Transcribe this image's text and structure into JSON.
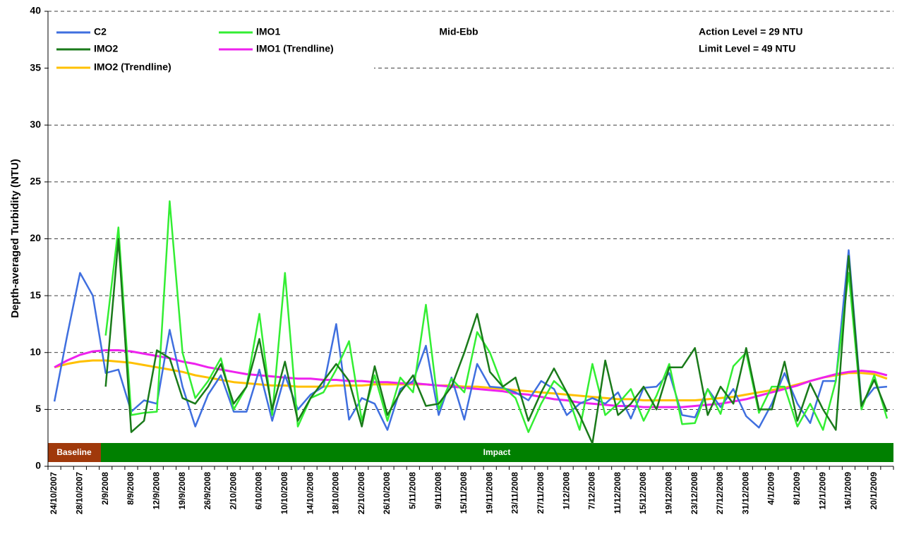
{
  "chart_data": {
    "type": "line",
    "y_label": "Depth-averaged Turbidity (NTU)",
    "annotations": [
      "Mid-Ebb",
      "Action Level = 29 NTU",
      "Limit Level = 49 NTU"
    ],
    "phases": [
      "Baseline",
      "Impact"
    ],
    "ylim": [
      0,
      40
    ],
    "yticks": [
      0,
      5,
      10,
      15,
      20,
      25,
      30,
      35,
      40
    ],
    "grid": true,
    "categories": [
      "24/10/2007",
      null,
      "28/10/2007",
      null,
      "2/9/2008",
      null,
      "8/9/2008",
      null,
      "12/9/2008",
      null,
      "19/9/2008",
      null,
      "26/9/2008",
      null,
      "2/10/2008",
      null,
      "6/10/2008",
      null,
      "10/10/2008",
      null,
      "14/10/2008",
      null,
      "18/10/2008",
      null,
      "22/10/2008",
      null,
      "26/10/2008",
      null,
      "5/11/2008",
      null,
      "9/11/2008",
      null,
      "15/11/2008",
      null,
      "19/11/2008",
      null,
      "23/11/2008",
      null,
      "27/11/2008",
      null,
      "1/12/2008",
      null,
      "7/12/2008",
      null,
      "11/12/2008",
      null,
      "15/12/2008",
      null,
      "19/12/2008",
      null,
      "23/12/2008",
      null,
      "27/12/2008",
      null,
      "31/12/2008",
      null,
      "4/1/2009",
      null,
      "8/1/2009",
      null,
      "12/1/2009",
      null,
      "16/1/2009",
      null,
      "20/1/2009",
      null
    ],
    "series": [
      {
        "name": "C2",
        "color": "#3f6fdf",
        "values": [
          5.7,
          11.5,
          17,
          15,
          8.2,
          8.5,
          4.8,
          5.8,
          5.5,
          12,
          7,
          3.5,
          6.3,
          8,
          4.8,
          4.8,
          8.5,
          4,
          8,
          5,
          6.3,
          7,
          12.5,
          4.1,
          6,
          5.5,
          3.2,
          6.8,
          7.5,
          10.6,
          4.5,
          7.8,
          4.1,
          9,
          7,
          6.9,
          6.5,
          5.8,
          7.5,
          6.8,
          4.5,
          5.5,
          6,
          5.5,
          6.5,
          4.2,
          6.9,
          7,
          8.2,
          4.5,
          4.3,
          6.8,
          5.2,
          6.8,
          4.4,
          3.4,
          5.5,
          8.2,
          5.5,
          3.8,
          7.5,
          7.5,
          19,
          5.5,
          6.9,
          7
        ]
      },
      {
        "name": "IMO1",
        "color": "#33ee33",
        "values": [
          null,
          null,
          null,
          null,
          11.5,
          21,
          4.5,
          4.7,
          4.8,
          23.3,
          10,
          6,
          7.5,
          9.5,
          5,
          7,
          13.4,
          4.5,
          17,
          3.5,
          6,
          6.5,
          8.5,
          11,
          4,
          8,
          4,
          7.8,
          6.5,
          14.2,
          5,
          7.7,
          6.5,
          11.8,
          10,
          7,
          6,
          3,
          5.5,
          7.5,
          6.5,
          3.2,
          9,
          4.5,
          5.5,
          6.8,
          4,
          6.2,
          9,
          3.7,
          3.8,
          6.8,
          4.6,
          8.8,
          10,
          4.7,
          7,
          7,
          3.5,
          5.5,
          3.2,
          7.5,
          17,
          5,
          8,
          4.2
        ]
      },
      {
        "name": "IMO2",
        "color": "#1a7a1a",
        "values": [
          null,
          null,
          null,
          null,
          7,
          20,
          3,
          4,
          10.2,
          9.5,
          6,
          5.5,
          7,
          9,
          5.5,
          7,
          11.2,
          5,
          9.2,
          4,
          6,
          7.5,
          9,
          7.5,
          3.5,
          8.8,
          4.5,
          6.5,
          8,
          5.3,
          5.5,
          7,
          10,
          13.4,
          8.3,
          7,
          7.8,
          4,
          6.5,
          8.6,
          6.5,
          4.5,
          2,
          9.3,
          4.5,
          5.5,
          7,
          5,
          8.7,
          8.7,
          10.4,
          4.5,
          7,
          5.5,
          10.4,
          5,
          5,
          9.2,
          4,
          7.3,
          5,
          3.2,
          18.5,
          5.3,
          7.6,
          4.8
        ]
      },
      {
        "name": "IMO1 (Trendline)",
        "color": "#ee22ee",
        "values": [
          8.7,
          9.3,
          9.8,
          10.1,
          10.2,
          10.2,
          10.1,
          9.9,
          9.7,
          9.5,
          9.2,
          9.0,
          8.7,
          8.5,
          8.3,
          8.1,
          8.0,
          7.9,
          7.8,
          7.7,
          7.7,
          7.6,
          7.6,
          7.5,
          7.5,
          7.4,
          7.4,
          7.3,
          7.3,
          7.2,
          7.1,
          7.0,
          6.9,
          6.8,
          6.7,
          6.6,
          6.4,
          6.3,
          6.1,
          5.9,
          5.8,
          5.6,
          5.5,
          5.4,
          5.3,
          5.3,
          5.2,
          5.2,
          5.2,
          5.2,
          5.3,
          5.4,
          5.5,
          5.7,
          5.9,
          6.2,
          6.5,
          6.8,
          7.1,
          7.5,
          7.8,
          8.1,
          8.3,
          8.4,
          8.3,
          8.0
        ]
      },
      {
        "name": "IMO2 (Trendline)",
        "color": "#ffc000",
        "values": [
          8.7,
          9.0,
          9.2,
          9.3,
          9.3,
          9.2,
          9.1,
          8.9,
          8.7,
          8.5,
          8.3,
          8.0,
          7.8,
          7.6,
          7.4,
          7.3,
          7.2,
          7.1,
          7.1,
          7.0,
          7.0,
          7.0,
          7.1,
          7.1,
          7.1,
          7.2,
          7.2,
          7.2,
          7.2,
          7.2,
          7.1,
          7.1,
          7.0,
          7.0,
          6.9,
          6.8,
          6.7,
          6.6,
          6.5,
          6.4,
          6.3,
          6.2,
          6.1,
          6.0,
          5.9,
          5.9,
          5.8,
          5.8,
          5.8,
          5.8,
          5.8,
          5.9,
          6.0,
          6.1,
          6.3,
          6.5,
          6.7,
          6.9,
          7.2,
          7.5,
          7.8,
          8.0,
          8.2,
          8.2,
          8.1,
          7.7
        ]
      }
    ]
  }
}
